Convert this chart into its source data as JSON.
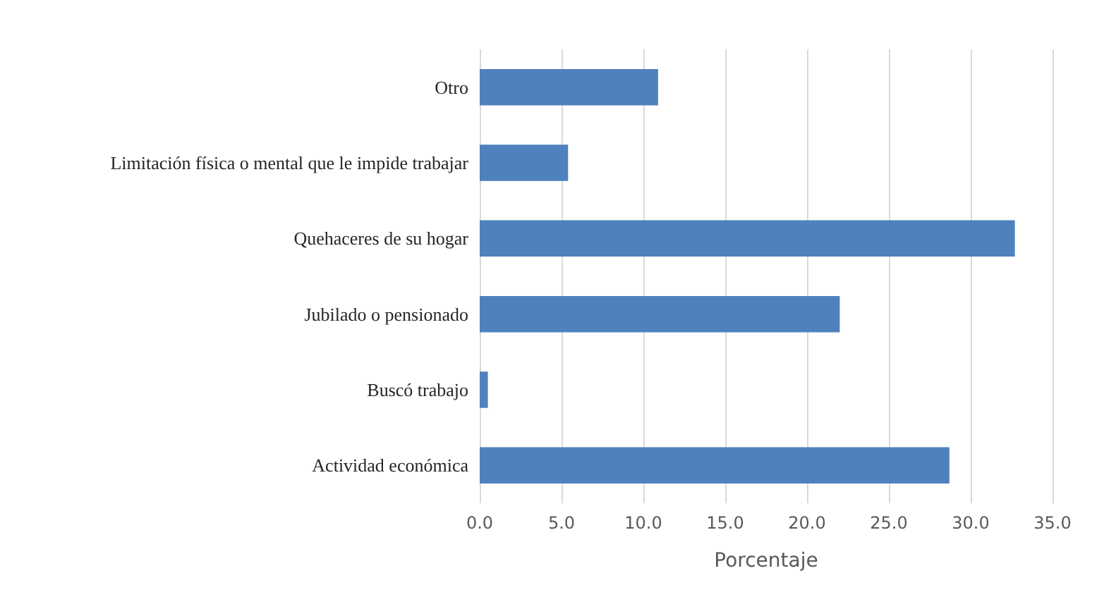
{
  "chart_data": {
    "type": "bar",
    "orientation": "horizontal",
    "xlabel": "Porcentaje",
    "categories": [
      "Otro",
      "Limitación física o mental que le impide trabajar",
      "Quehaceres de su hogar",
      "Jubilado o pensionado",
      "Buscó trabajo",
      "Actividad económica"
    ],
    "values": [
      10.9,
      5.4,
      32.7,
      22.0,
      0.5,
      28.7
    ],
    "color": "#4f81bd",
    "xlim": [
      0,
      35
    ],
    "xticks": [
      {
        "value": 0,
        "label": "0.0"
      },
      {
        "value": 5,
        "label": "5.0"
      },
      {
        "value": 10,
        "label": "10.0"
      },
      {
        "value": 15,
        "label": "15.0"
      },
      {
        "value": 20,
        "label": "20.0"
      },
      {
        "value": 25,
        "label": "25.0"
      },
      {
        "value": 30,
        "label": "30.0"
      },
      {
        "value": 35,
        "label": "35.0"
      }
    ],
    "grid": "x"
  }
}
